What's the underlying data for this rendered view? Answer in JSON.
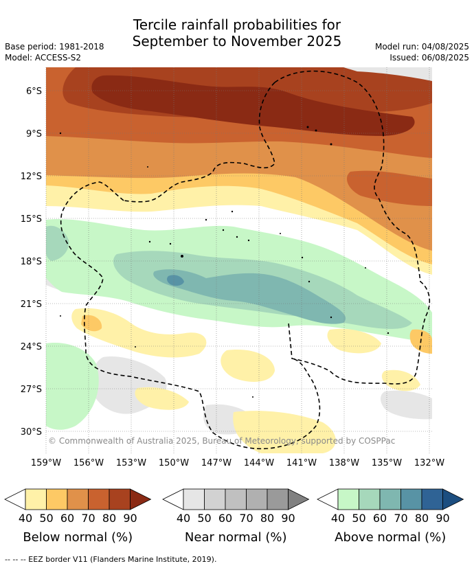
{
  "title_line1": "Tercile rainfall probabilities for",
  "title_line2": "September to November 2025",
  "base_period": "Base period: 1981-2018",
  "model": "Model: ACCESS-S2",
  "model_run": "Model run: 04/08/2025",
  "issued": "Issued: 06/08/2025",
  "lat_labels": [
    "6°S",
    "9°S",
    "12°S",
    "15°S",
    "18°S",
    "21°S",
    "24°S",
    "27°S",
    "30°S"
  ],
  "lon_labels": [
    "159°W",
    "156°W",
    "153°W",
    "150°W",
    "147°W",
    "144°W",
    "141°W",
    "138°W",
    "135°W",
    "132°W"
  ],
  "credit": "© Commonwealth of Australia 2025, Bureau of Meteorology, supported by COSPPac",
  "legends": [
    {
      "label": "Below normal (%)",
      "ticks": [
        "40",
        "50",
        "60",
        "70",
        "80",
        "90"
      ],
      "colors": [
        "#ffffff",
        "#fff1a8",
        "#fdc965",
        "#e0914a",
        "#c9622f",
        "#a8421f",
        "#8a2a14"
      ]
    },
    {
      "label": "Near normal (%)",
      "ticks": [
        "40",
        "50",
        "60",
        "70",
        "80",
        "90"
      ],
      "colors": [
        "#ffffff",
        "#e6e6e6",
        "#d2d2d2",
        "#c0c0c0",
        "#b0b0b0",
        "#9a9a9a",
        "#808080"
      ]
    },
    {
      "label": "Above normal (%)",
      "ticks": [
        "40",
        "50",
        "60",
        "70",
        "80",
        "90"
      ],
      "colors": [
        "#ffffff",
        "#c7f7c7",
        "#a6d8bb",
        "#7fb7b0",
        "#5893a5",
        "#2f6395",
        "#1c4e80"
      ]
    }
  ],
  "footnote": "-- -- -- EEZ border V11 (Flanders Marine Institute, 2019)."
}
